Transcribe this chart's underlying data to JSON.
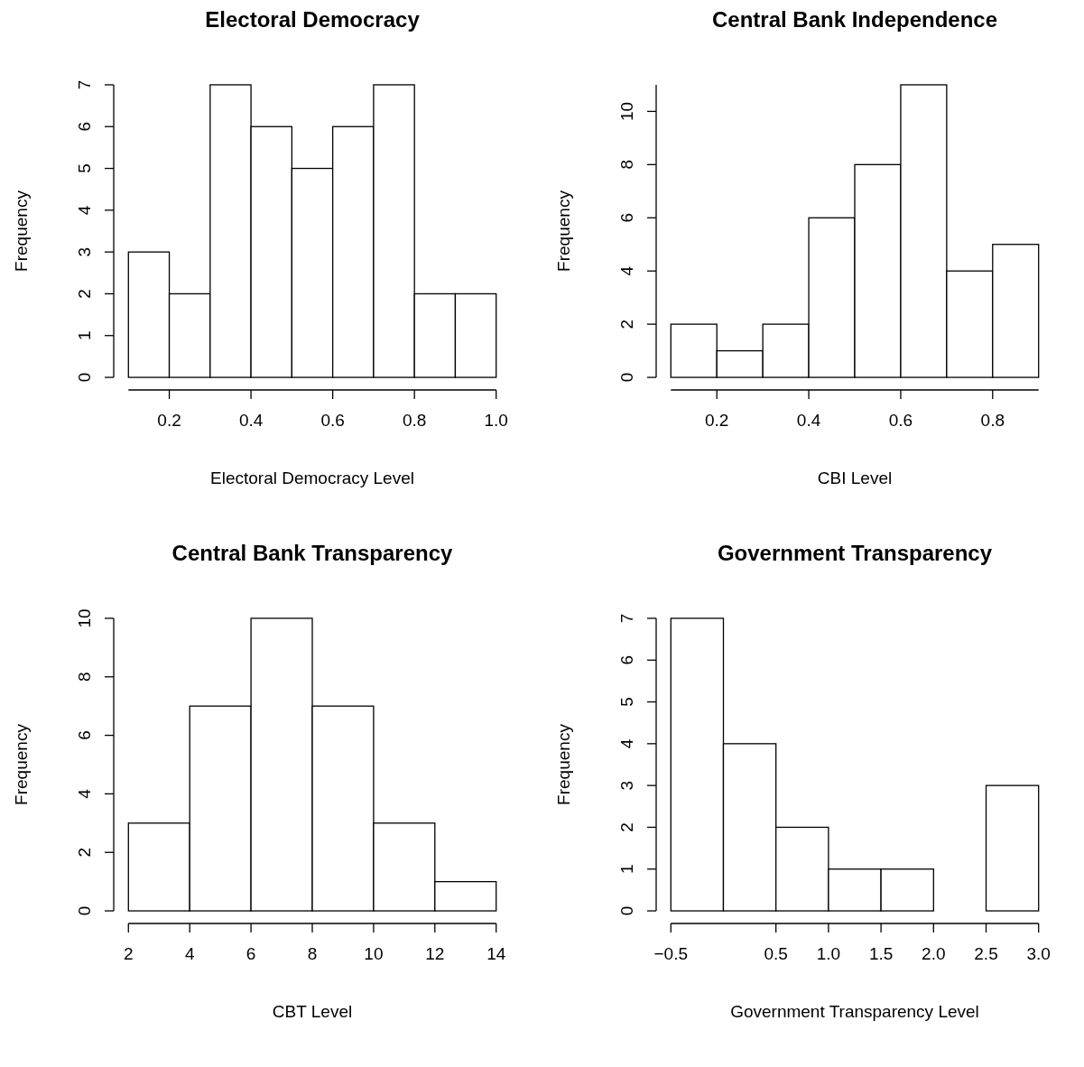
{
  "chart_data": [
    {
      "type": "histogram",
      "title": "Electoral Democracy",
      "xlabel": "Electoral Democracy Level",
      "ylabel": "Frequency",
      "bins": [
        0.1,
        0.2,
        0.3,
        0.4,
        0.5,
        0.6,
        0.7,
        0.8,
        0.9,
        1.0
      ],
      "values": [
        3,
        2,
        7,
        6,
        5,
        6,
        7,
        2,
        2
      ],
      "color": "#ffffff",
      "xlim": [
        0.1,
        1.0
      ],
      "xticks": [
        0.2,
        0.4,
        0.6,
        0.8,
        {
          "value": 1.0,
          "label": "1.0"
        }
      ],
      "ylim": [
        0,
        7
      ],
      "yticks": [
        0,
        1,
        2,
        3,
        4,
        5,
        6,
        7
      ],
      "grid": false
    },
    {
      "type": "histogram",
      "title": "Central Bank Independence",
      "xlabel": "CBI Level",
      "ylabel": "Frequency",
      "bins": [
        0.1,
        0.2,
        0.3,
        0.4,
        0.5,
        0.6,
        0.7,
        0.8,
        0.9
      ],
      "values": [
        2,
        1,
        2,
        6,
        8,
        11,
        4,
        5
      ],
      "color": "#ffffff",
      "xlim": [
        0.1,
        0.9
      ],
      "xticks": [
        0.2,
        0.4,
        0.6,
        0.8
      ],
      "ylim": [
        0,
        11
      ],
      "yticks": [
        0,
        2,
        4,
        6,
        8,
        10
      ],
      "grid": false
    },
    {
      "type": "histogram",
      "title": "Central Bank Transparency",
      "xlabel": "CBT Level",
      "ylabel": "Frequency",
      "bins": [
        2,
        4,
        6,
        8,
        10,
        12,
        14
      ],
      "values": [
        3,
        7,
        10,
        7,
        3,
        1
      ],
      "color": "#ffffff",
      "xlim": [
        2,
        14
      ],
      "xticks": [
        2,
        4,
        6,
        8,
        10,
        12,
        14
      ],
      "ylim": [
        0,
        10
      ],
      "yticks": [
        0,
        2,
        4,
        6,
        8,
        10
      ],
      "grid": false
    },
    {
      "type": "histogram",
      "title": "Government Transparency",
      "xlabel": "Government Transparency Level",
      "ylabel": "Frequency",
      "bins": [
        -0.5,
        0,
        0.5,
        1.0,
        1.5,
        2.0,
        2.5,
        3.0
      ],
      "values": [
        7,
        4,
        2,
        1,
        1,
        0,
        3
      ],
      "color": "#ffffff",
      "xlim": [
        -0.5,
        3.0
      ],
      "xticks": [
        {
          "value": -0.5,
          "label": "−0.5"
        },
        0.5,
        {
          "value": 1.0,
          "label": "1.0"
        },
        1.5,
        {
          "value": 2.0,
          "label": "2.0"
        },
        2.5,
        {
          "value": 3.0,
          "label": "3.0"
        }
      ],
      "ylim": [
        0,
        7
      ],
      "yticks": [
        0,
        1,
        2,
        3,
        4,
        5,
        6,
        7
      ],
      "grid": false
    }
  ]
}
